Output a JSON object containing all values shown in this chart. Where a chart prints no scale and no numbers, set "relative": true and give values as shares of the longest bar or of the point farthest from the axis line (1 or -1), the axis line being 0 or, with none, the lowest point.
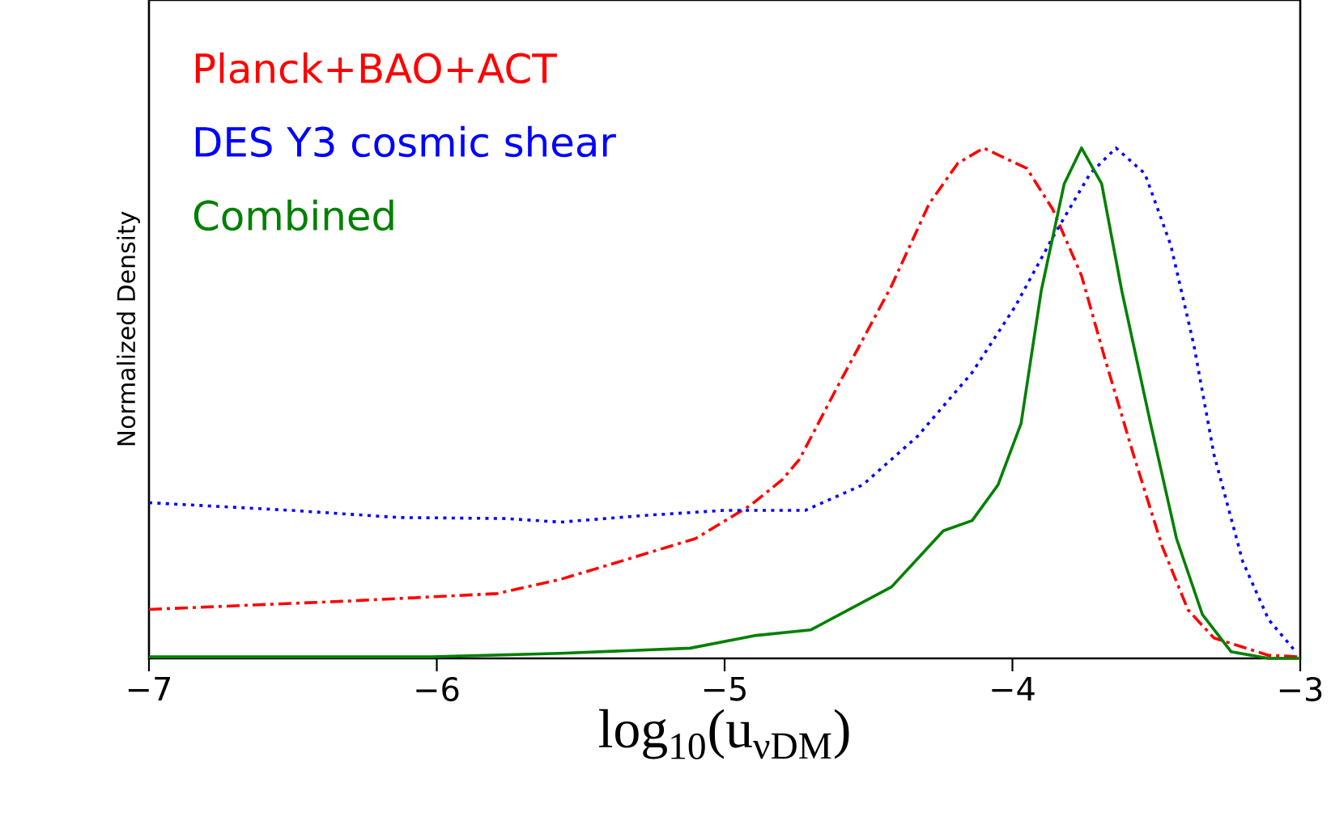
{
  "chart_data": {
    "type": "line",
    "relative": true,
    "xlabel": "log$_{10}$(u$_{νDM}$)",
    "ylabel": "Normalized Density",
    "xlim": [
      -7,
      -3
    ],
    "xticks": [
      {
        "value": -7,
        "label": "−7"
      },
      {
        "value": -6,
        "label": "−6"
      },
      {
        "value": -5,
        "label": "−5"
      },
      {
        "value": -4,
        "label": "−4"
      },
      {
        "value": -3,
        "label": "−3"
      }
    ],
    "legend": "top left",
    "grid": false,
    "series": [
      {
        "name": "Planck+BAO+ACT",
        "color": "#ff0000",
        "line_style": "dashdot",
        "x": [
          -7.0,
          -6.32,
          -5.79,
          -5.57,
          -5.38,
          -5.1,
          -4.91,
          -4.8,
          -4.74,
          -4.61,
          -4.42,
          -4.29,
          -4.19,
          -4.1,
          -3.95,
          -3.86,
          -3.76,
          -3.68,
          -3.58,
          -3.48,
          -3.39,
          -3.3,
          -3.11,
          -3.0
        ],
        "values": [
          0.096,
          0.112,
          0.127,
          0.155,
          0.187,
          0.235,
          0.3,
          0.35,
          0.39,
          0.53,
          0.73,
          0.89,
          0.97,
          1.0,
          0.96,
          0.88,
          0.75,
          0.59,
          0.4,
          0.22,
          0.095,
          0.04,
          0.006,
          0.003
        ]
      },
      {
        "name": "DES Y3 cosmic shear",
        "color": "#0000ff",
        "line_style": "dotted",
        "x": [
          -7.0,
          -6.505,
          -6.13,
          -5.76,
          -5.57,
          -5.28,
          -5.0,
          -4.72,
          -4.52,
          -4.33,
          -4.14,
          -3.99,
          -3.86,
          -3.73,
          -3.64,
          -3.54,
          -3.45,
          -3.37,
          -3.3,
          -3.2,
          -3.11,
          -3.02
        ],
        "values": [
          0.305,
          0.29,
          0.276,
          0.274,
          0.267,
          0.28,
          0.29,
          0.29,
          0.34,
          0.435,
          0.56,
          0.69,
          0.825,
          0.95,
          1.0,
          0.95,
          0.81,
          0.615,
          0.4,
          0.19,
          0.076,
          0.016
        ]
      },
      {
        "name": "Combined",
        "color": "#008000",
        "line_style": "solid",
        "x": [
          -7.0,
          -6.02,
          -5.57,
          -5.12,
          -4.89,
          -4.7,
          -4.42,
          -4.24,
          -4.14,
          -4.05,
          -3.97,
          -3.9,
          -3.82,
          -3.76,
          -3.69,
          -3.62,
          -3.52,
          -3.43,
          -3.34,
          -3.24,
          -3.11,
          -3.0
        ],
        "values": [
          0.003,
          0.003,
          0.01,
          0.02,
          0.045,
          0.056,
          0.14,
          0.25,
          0.27,
          0.34,
          0.46,
          0.72,
          0.93,
          1.0,
          0.93,
          0.72,
          0.46,
          0.235,
          0.086,
          0.013,
          0.0,
          0.0
        ]
      }
    ]
  }
}
